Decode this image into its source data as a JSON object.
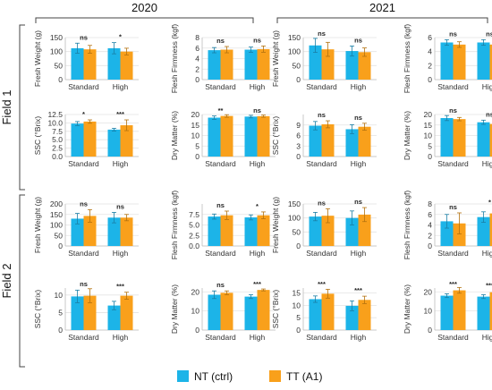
{
  "years": [
    "2020",
    "2021"
  ],
  "fields": [
    "Field 1",
    "Field 2"
  ],
  "categories": [
    "Standard",
    "High"
  ],
  "legend": [
    {
      "label": "NT (ctrl)",
      "color": "#1cb4e8"
    },
    {
      "label": "TT (A1)",
      "color": "#f9a01b"
    }
  ],
  "colors": {
    "nt": "#1cb4e8",
    "tt": "#f9a01b",
    "axis": "#bdbdbd",
    "grid": "#e3e3e3",
    "text": "#333333"
  },
  "chart_data": [
    {
      "type": "bar",
      "year": "2020",
      "field": "Field 1",
      "ylabel": "Fresh Weight (g)",
      "ylim": [
        0,
        150
      ],
      "yticks": [
        "0",
        "50",
        "100",
        "150"
      ],
      "categories": [
        "Standard",
        "High"
      ],
      "series": [
        {
          "name": "NT (ctrl)",
          "values": [
            112,
            112
          ],
          "errors": [
            18,
            20
          ]
        },
        {
          "name": "TT (A1)",
          "values": [
            108,
            100
          ],
          "errors": [
            14,
            12
          ]
        }
      ],
      "significance": [
        "ns",
        "*"
      ]
    },
    {
      "type": "bar",
      "year": "2020",
      "field": "Field 1",
      "ylabel": "Flesh Firmness (kgf)",
      "ylim": [
        0,
        8
      ],
      "yticks": [
        "0",
        "2",
        "4",
        "6",
        "8"
      ],
      "categories": [
        "Standard",
        "High"
      ],
      "series": [
        {
          "name": "NT (ctrl)",
          "values": [
            5.6,
            5.7
          ],
          "errors": [
            0.5,
            0.5
          ]
        },
        {
          "name": "TT (A1)",
          "values": [
            5.7,
            5.8
          ],
          "errors": [
            0.6,
            0.6
          ]
        }
      ],
      "significance": [
        "ns",
        "ns"
      ]
    },
    {
      "type": "bar",
      "year": "2020",
      "field": "Field 1",
      "ylabel": "SSC (°Brix)",
      "ylim": [
        0,
        12.5
      ],
      "yticks": [
        "0.0",
        "2.5",
        "5.0",
        "7.5",
        "10.0",
        "12.5"
      ],
      "categories": [
        "Standard",
        "High"
      ],
      "series": [
        {
          "name": "NT (ctrl)",
          "values": [
            9.8,
            8.0
          ],
          "errors": [
            0.6,
            0.4
          ]
        },
        {
          "name": "TT (A1)",
          "values": [
            10.4,
            9.3
          ],
          "errors": [
            0.5,
            1.6
          ]
        }
      ],
      "significance": [
        "*",
        "***"
      ]
    },
    {
      "type": "bar",
      "year": "2020",
      "field": "Field 1",
      "ylabel": "Dry Matter (%)",
      "ylim": [
        0,
        20
      ],
      "yticks": [
        "0",
        "5",
        "10",
        "15",
        "20"
      ],
      "categories": [
        "Standard",
        "High"
      ],
      "series": [
        {
          "name": "NT (ctrl)",
          "values": [
            18.5,
            19.0
          ],
          "errors": [
            0.8,
            0.6
          ]
        },
        {
          "name": "TT (A1)",
          "values": [
            19.3,
            19.2
          ],
          "errors": [
            0.6,
            0.5
          ]
        }
      ],
      "significance": [
        "**",
        "ns"
      ]
    },
    {
      "type": "bar",
      "year": "2021",
      "field": "Field 1",
      "ylabel": "Fresh Weight (g)",
      "ylim": [
        0,
        150
      ],
      "yticks": [
        "0",
        "50",
        "100",
        "150"
      ],
      "categories": [
        "Standard",
        "High"
      ],
      "series": [
        {
          "name": "NT (ctrl)",
          "values": [
            122,
            102
          ],
          "errors": [
            25,
            18
          ]
        },
        {
          "name": "TT (A1)",
          "values": [
            108,
            98
          ],
          "errors": [
            25,
            15
          ]
        }
      ],
      "significance": [
        "ns",
        "ns"
      ]
    },
    {
      "type": "bar",
      "year": "2021",
      "field": "Field 1",
      "ylabel": "Flesh Firmness (kgf)",
      "ylim": [
        0,
        6
      ],
      "yticks": [
        "0",
        "2",
        "4",
        "6"
      ],
      "categories": [
        "Standard",
        "High"
      ],
      "series": [
        {
          "name": "NT (ctrl)",
          "values": [
            5.3,
            5.3
          ],
          "errors": [
            0.4,
            0.4
          ]
        },
        {
          "name": "TT (A1)",
          "values": [
            5.0,
            5.0
          ],
          "errors": [
            0.4,
            0.6
          ]
        }
      ],
      "significance": [
        "ns",
        "ns"
      ]
    },
    {
      "type": "bar",
      "year": "2021",
      "field": "Field 1",
      "ylabel": "SSC (°Brix)",
      "ylim": [
        0,
        12
      ],
      "yticks": [
        "0",
        "3",
        "6",
        "9"
      ],
      "categories": [
        "Standard",
        "High"
      ],
      "series": [
        {
          "name": "NT (ctrl)",
          "values": [
            8.8,
            7.8
          ],
          "errors": [
            1.2,
            1.3
          ]
        },
        {
          "name": "TT (A1)",
          "values": [
            9.2,
            8.5
          ],
          "errors": [
            1.0,
            1.0
          ]
        }
      ],
      "significance": [
        "ns",
        "ns"
      ]
    },
    {
      "type": "bar",
      "year": "2021",
      "field": "Field 1",
      "ylabel": "Dry Matter (%)",
      "ylim": [
        0,
        20
      ],
      "yticks": [
        "0",
        "5",
        "10",
        "15",
        "20"
      ],
      "categories": [
        "Standard",
        "High"
      ],
      "series": [
        {
          "name": "NT (ctrl)",
          "values": [
            18.3,
            16.3
          ],
          "errors": [
            1.2,
            1.0
          ]
        },
        {
          "name": "TT (A1)",
          "values": [
            17.8,
            15.5
          ],
          "errors": [
            0.8,
            1.0
          ]
        }
      ],
      "significance": [
        "ns",
        "ns"
      ]
    },
    {
      "type": "bar",
      "year": "2020",
      "field": "Field 2",
      "ylabel": "Fresh Weight (g)",
      "ylim": [
        0,
        200
      ],
      "yticks": [
        "0",
        "50",
        "100",
        "150",
        "200"
      ],
      "categories": [
        "Standard",
        "High"
      ],
      "series": [
        {
          "name": "NT (ctrl)",
          "values": [
            130,
            135
          ],
          "errors": [
            25,
            25
          ]
        },
        {
          "name": "TT (A1)",
          "values": [
            143,
            135
          ],
          "errors": [
            30,
            15
          ]
        }
      ],
      "significance": [
        "ns",
        "ns"
      ]
    },
    {
      "type": "bar",
      "year": "2020",
      "field": "Field 2",
      "ylabel": "Flesh Firmness (kgf)",
      "ylim": [
        0,
        10
      ],
      "yticks": [
        "0.0",
        "2.5",
        "5.0",
        "7.5"
      ],
      "categories": [
        "Standard",
        "High"
      ],
      "series": [
        {
          "name": "NT (ctrl)",
          "values": [
            7.0,
            6.8
          ],
          "errors": [
            0.6,
            0.6
          ]
        },
        {
          "name": "TT (A1)",
          "values": [
            7.3,
            7.3
          ],
          "errors": [
            1.0,
            0.8
          ]
        }
      ],
      "significance": [
        "ns",
        "*"
      ]
    },
    {
      "type": "bar",
      "year": "2020",
      "field": "Field 2",
      "ylabel": "SSC (°Brix)",
      "ylim": [
        0,
        12
      ],
      "yticks": [
        "0",
        "5",
        "10"
      ],
      "categories": [
        "Standard",
        "High"
      ],
      "series": [
        {
          "name": "NT (ctrl)",
          "values": [
            9.6,
            7.0
          ],
          "errors": [
            1.8,
            1.2
          ]
        },
        {
          "name": "TT (A1)",
          "values": [
            9.8,
            9.8
          ],
          "errors": [
            2.0,
            1.0
          ]
        }
      ],
      "significance": [
        "ns",
        "***"
      ]
    },
    {
      "type": "bar",
      "year": "2020",
      "field": "Field 2",
      "ylabel": "Dry Matter (%)",
      "ylim": [
        0,
        22
      ],
      "yticks": [
        "0",
        "10",
        "20"
      ],
      "categories": [
        "Standard",
        "High"
      ],
      "series": [
        {
          "name": "NT (ctrl)",
          "values": [
            18.5,
            17.5
          ],
          "errors": [
            2.0,
            1.0
          ]
        },
        {
          "name": "TT (A1)",
          "values": [
            19.5,
            21.0
          ],
          "errors": [
            1.0,
            0.5
          ]
        }
      ],
      "significance": [
        "ns",
        "***"
      ]
    },
    {
      "type": "bar",
      "year": "2021",
      "field": "Field 2",
      "ylabel": "Fresh Weight (g)",
      "ylim": [
        0,
        150
      ],
      "yticks": [
        "0",
        "50",
        "100",
        "150"
      ],
      "categories": [
        "Standard",
        "High"
      ],
      "series": [
        {
          "name": "NT (ctrl)",
          "values": [
            105,
            100
          ],
          "errors": [
            15,
            25
          ]
        },
        {
          "name": "TT (A1)",
          "values": [
            108,
            112
          ],
          "errors": [
            25,
            25
          ]
        }
      ],
      "significance": [
        "ns",
        "ns"
      ]
    },
    {
      "type": "bar",
      "year": "2021",
      "field": "Field 2",
      "ylabel": "Flesh Firmness (kgf)",
      "ylim": [
        0,
        8
      ],
      "yticks": [
        "0",
        "2",
        "4",
        "6",
        "8"
      ],
      "categories": [
        "Standard",
        "High"
      ],
      "series": [
        {
          "name": "NT (ctrl)",
          "values": [
            4.7,
            5.5
          ],
          "errors": [
            1.3,
            1.0
          ]
        },
        {
          "name": "TT (A1)",
          "values": [
            4.3,
            6.2
          ],
          "errors": [
            2.0,
            1.0
          ]
        }
      ],
      "significance": [
        "ns",
        "*"
      ]
    },
    {
      "type": "bar",
      "year": "2021",
      "field": "Field 2",
      "ylabel": "SSC (°Brix)",
      "ylim": [
        0,
        17
      ],
      "yticks": [
        "0",
        "5",
        "10",
        "15"
      ],
      "categories": [
        "Standard",
        "High"
      ],
      "series": [
        {
          "name": "NT (ctrl)",
          "values": [
            12.5,
            9.8
          ],
          "errors": [
            1.3,
            2.0
          ]
        },
        {
          "name": "TT (A1)",
          "values": [
            14.7,
            12.2
          ],
          "errors": [
            1.8,
            1.5
          ]
        }
      ],
      "significance": [
        "***",
        "***"
      ]
    },
    {
      "type": "bar",
      "year": "2021",
      "field": "Field 2",
      "ylabel": "Dry Matter (%)",
      "ylim": [
        0,
        22
      ],
      "yticks": [
        "0",
        "10",
        "20"
      ],
      "categories": [
        "Standard",
        "High"
      ],
      "series": [
        {
          "name": "NT (ctrl)",
          "values": [
            18.0,
            17.5
          ],
          "errors": [
            1.0,
            1.0
          ]
        },
        {
          "name": "TT (A1)",
          "values": [
            20.8,
            19.8
          ],
          "errors": [
            1.5,
            0.5
          ]
        }
      ],
      "significance": [
        "***",
        "***"
      ]
    }
  ]
}
